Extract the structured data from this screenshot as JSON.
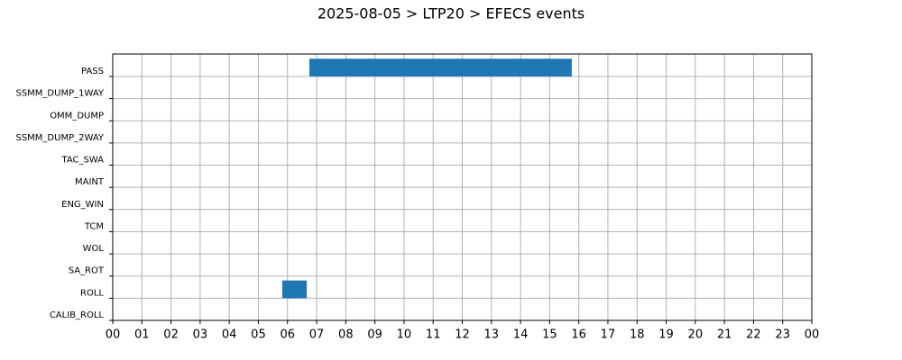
{
  "chart_data": {
    "type": "timeline",
    "title": "2025-08-05 > LTP20 > EFECS events",
    "categories": [
      "PASS",
      "SSMM_DUMP_1WAY",
      "OMM_DUMP",
      "SSMM_DUMP_2WAY",
      "TAC_SWA",
      "MAINT",
      "ENG_WIN",
      "TCM",
      "WOL",
      "SA_ROT",
      "ROLL",
      "CALIB_ROLL"
    ],
    "events": [
      {
        "category": "PASS",
        "start": 6.75,
        "end": 15.76
      },
      {
        "category": "ROLL",
        "start": 5.82,
        "end": 6.66
      }
    ],
    "color": "#1f77b4",
    "xlim": [
      0,
      24
    ],
    "xticks": [
      {
        "value": 0,
        "label": "00"
      },
      {
        "value": 1,
        "label": "01"
      },
      {
        "value": 2,
        "label": "02"
      },
      {
        "value": 3,
        "label": "03"
      },
      {
        "value": 4,
        "label": "04"
      },
      {
        "value": 5,
        "label": "05"
      },
      {
        "value": 6,
        "label": "06"
      },
      {
        "value": 7,
        "label": "07"
      },
      {
        "value": 8,
        "label": "08"
      },
      {
        "value": 9,
        "label": "09"
      },
      {
        "value": 10,
        "label": "10"
      },
      {
        "value": 11,
        "label": "11"
      },
      {
        "value": 12,
        "label": "12"
      },
      {
        "value": 13,
        "label": "13"
      },
      {
        "value": 14,
        "label": "14"
      },
      {
        "value": 15,
        "label": "15"
      },
      {
        "value": 16,
        "label": "16"
      },
      {
        "value": 17,
        "label": "17"
      },
      {
        "value": 18,
        "label": "18"
      },
      {
        "value": 19,
        "label": "19"
      },
      {
        "value": 20,
        "label": "20"
      },
      {
        "value": 21,
        "label": "21"
      },
      {
        "value": 22,
        "label": "22"
      },
      {
        "value": 23,
        "label": "23"
      },
      {
        "value": 24,
        "label": "00"
      }
    ],
    "grid": true
  }
}
